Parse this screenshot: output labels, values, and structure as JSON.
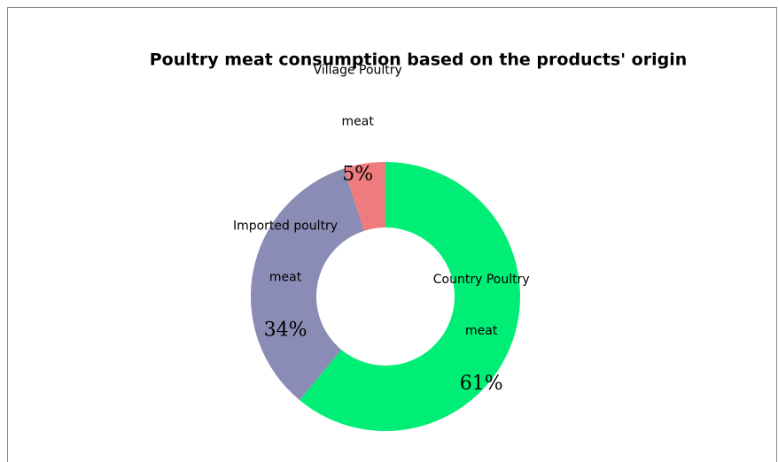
{
  "chart_data": {
    "type": "donut",
    "title": "Poultry meat consumption based on the products' origin",
    "categories": [
      "Country Poultry meat",
      "Imported poultry meat",
      "Village Poultry meat"
    ],
    "values": [
      61,
      34,
      5
    ],
    "value_labels": [
      "61%",
      "34%",
      "5%"
    ],
    "colors": [
      "#00ee76",
      "#8a8cb6",
      "#ee7b7e"
    ]
  }
}
